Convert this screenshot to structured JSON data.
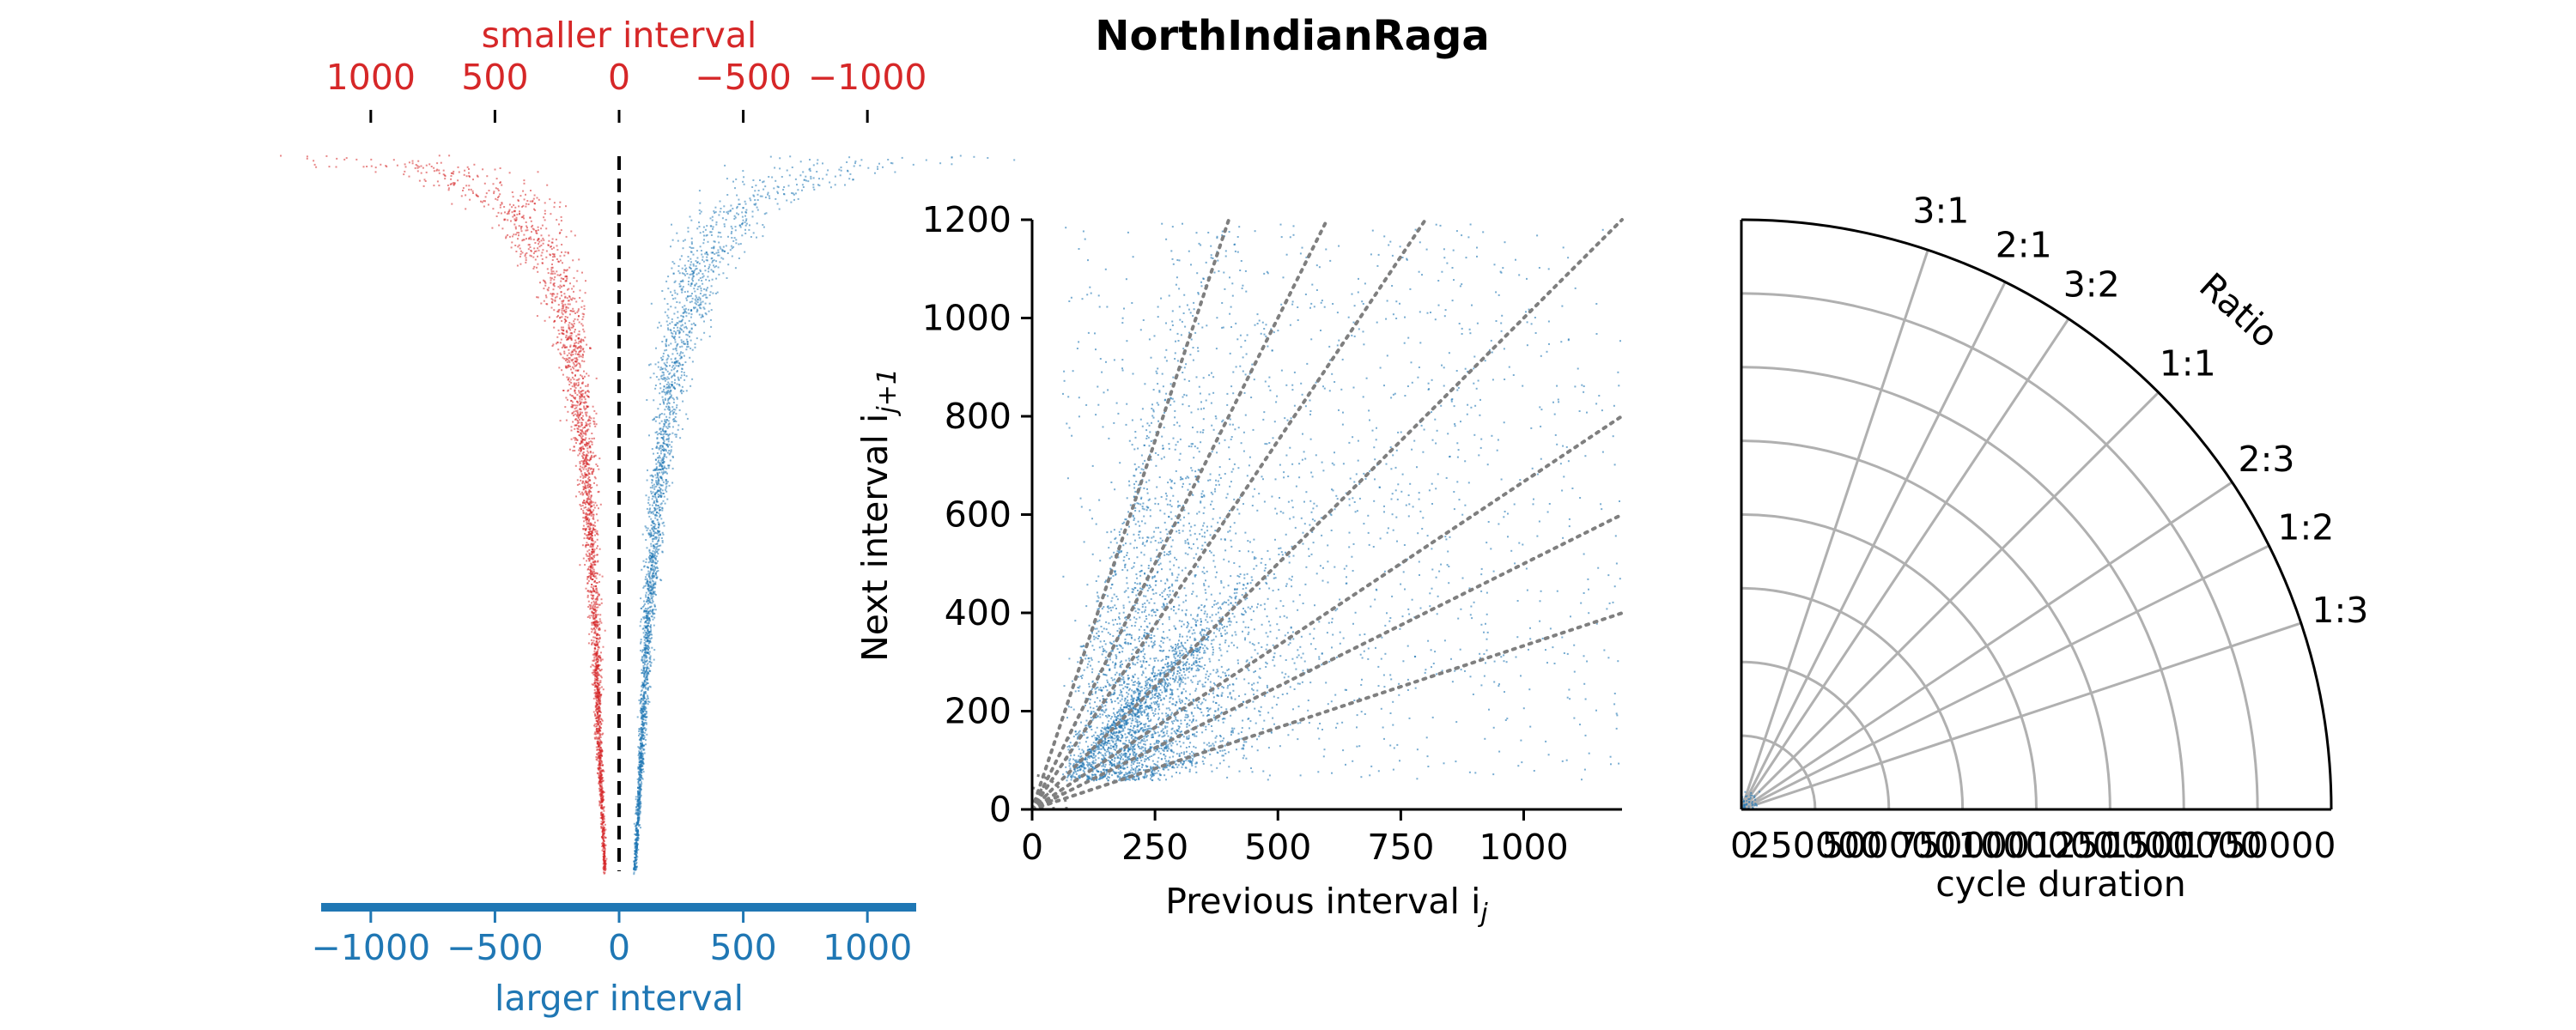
{
  "title": "NorthIndianRaga",
  "colors": {
    "red": "#d62728",
    "blue": "#1f77b4",
    "grid": "#b0b0b0",
    "diag": "#7f7f7f",
    "axis": "#000000"
  },
  "chart_data": [
    {
      "type": "scatter",
      "panel": "interval-difference",
      "top_axis_label": "smaller interval",
      "bottom_axis_label": "larger interval",
      "xlim": [
        -1200,
        1200
      ],
      "top_ticks": [
        1000,
        500,
        0,
        -500,
        -1000
      ],
      "top_tick_labels": [
        "1000",
        "500",
        "0",
        "−500",
        "−1000"
      ],
      "bottom_ticks": [
        -1000,
        -500,
        0,
        500,
        1000
      ],
      "bottom_tick_labels": [
        "−1000",
        "−500",
        "0",
        "500",
        "1000"
      ],
      "series": [
        {
          "color": "red",
          "side": "smaller",
          "curve_x": [
            -60,
            -80,
            -100,
            -130,
            -180,
            -260,
            -420,
            -700,
            -1100
          ],
          "curve_rank": [
            0.0,
            0.15,
            0.35,
            0.55,
            0.72,
            0.84,
            0.93,
            0.98,
            1.0
          ]
        },
        {
          "color": "blue",
          "side": "larger",
          "curve_x": [
            60,
            80,
            110,
            150,
            210,
            300,
            450,
            700,
            1150
          ],
          "curve_rank": [
            0.0,
            0.12,
            0.32,
            0.52,
            0.7,
            0.83,
            0.92,
            0.97,
            1.0
          ]
        }
      ]
    },
    {
      "type": "scatter",
      "panel": "return-map",
      "xlabel": "Previous interval i",
      "xlabel_sub": "j",
      "ylabel": "Next interval i",
      "ylabel_sub": "j+1",
      "xlim": [
        0,
        1200
      ],
      "ylim": [
        0,
        1200
      ],
      "xticks": [
        0,
        250,
        500,
        750,
        1000
      ],
      "yticks": [
        0,
        200,
        400,
        600,
        800,
        1000,
        1200
      ],
      "xtick_labels": [
        "0",
        "250",
        "500",
        "750",
        "1000"
      ],
      "ytick_labels": [
        "0",
        "200",
        "400",
        "600",
        "800",
        "1000",
        "1200"
      ],
      "ratio_lines": [
        0.333,
        0.5,
        0.667,
        1.0,
        1.5,
        2.0,
        3.0
      ],
      "min_interval": 60
    },
    {
      "type": "polar",
      "panel": "ratio-polar",
      "radial_label": "cycle duration",
      "angular_label": "Ratio",
      "radial_ticks": [
        0,
        250000,
        500000,
        750000,
        1000000,
        1250000,
        1500000,
        1750000
      ],
      "radial_tick_labels": [
        "0",
        "250000",
        "500000",
        "750000",
        "1000000",
        "1250000",
        "1500000",
        "1750000"
      ],
      "rmax": 2000000,
      "ratio_labels": [
        {
          "label": "3:1",
          "ratio": 3.0
        },
        {
          "label": "2:1",
          "ratio": 2.0
        },
        {
          "label": "3:2",
          "ratio": 1.5
        },
        {
          "label": "1:1",
          "ratio": 1.0
        },
        {
          "label": "2:3",
          "ratio": 0.667
        },
        {
          "label": "1:2",
          "ratio": 0.5
        },
        {
          "label": "1:3",
          "ratio": 0.333
        }
      ]
    }
  ]
}
